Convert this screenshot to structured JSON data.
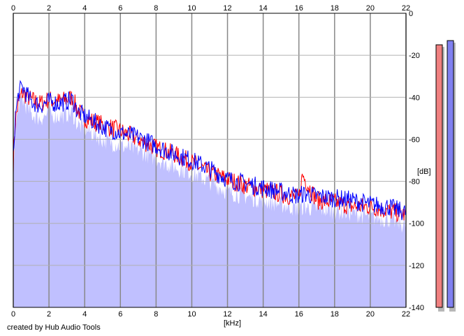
{
  "credit": "created by Hub Audio Tools",
  "chart_data": {
    "type": "area",
    "xlabel": "[kHz]",
    "ylabel": "[dB]",
    "xlim": [
      0,
      22
    ],
    "ylim": [
      -140,
      0
    ],
    "x_ticks": [
      0,
      2,
      4,
      6,
      8,
      10,
      12,
      14,
      16,
      18,
      20,
      22
    ],
    "y_ticks": [
      0,
      -20,
      -40,
      -60,
      -80,
      -100,
      -120,
      -140
    ],
    "x_tick_labels": [
      "0",
      "2",
      "4",
      "6",
      "8",
      "10",
      "12",
      "14",
      "16",
      "18",
      "20",
      "22"
    ],
    "y_tick_labels": [
      "0",
      "-20",
      "-40",
      "-60",
      "-80",
      "-100",
      "-120",
      "-140"
    ],
    "grid": true,
    "series": [
      {
        "color": "#ff0000",
        "x": [
          0,
          0.1,
          0.3,
          0.5,
          1,
          1.5,
          2,
          2.5,
          3,
          3.3,
          3.6,
          4,
          5,
          6,
          7,
          8,
          9,
          10,
          11,
          12,
          13,
          14,
          15,
          16,
          16.2,
          17,
          18,
          19,
          20,
          21,
          22
        ],
        "values": [
          -72,
          -52,
          -42,
          -38,
          -41,
          -43,
          -41,
          -42,
          -41,
          -40,
          -46,
          -50,
          -53,
          -56,
          -60,
          -64,
          -67,
          -71,
          -76,
          -79,
          -82,
          -84,
          -86,
          -88,
          -77,
          -89,
          -90,
          -92,
          -92,
          -94,
          -96
        ]
      },
      {
        "color": "#0000ff",
        "x": [
          0,
          0.1,
          0.3,
          0.5,
          1,
          1.5,
          2,
          2.5,
          3,
          3.3,
          3.6,
          4,
          5,
          6,
          7,
          8,
          9,
          10,
          11,
          12,
          13,
          14,
          15,
          16,
          16.2,
          17,
          18,
          19,
          20,
          21,
          22
        ],
        "values": [
          -70,
          -50,
          -38,
          -35,
          -42,
          -44,
          -42,
          -43,
          -42,
          -41,
          -47,
          -49,
          -54,
          -57,
          -59,
          -63,
          -67,
          -70,
          -74,
          -79,
          -81,
          -83,
          -85,
          -87,
          -86,
          -87,
          -88,
          -89,
          -91,
          -92,
          -95
        ]
      }
    ],
    "fill_color": "#c0c0ff",
    "level_meters": [
      {
        "color": "#f08080",
        "level_db": -15
      },
      {
        "color": "#8080f0",
        "level_db": -13
      }
    ]
  }
}
